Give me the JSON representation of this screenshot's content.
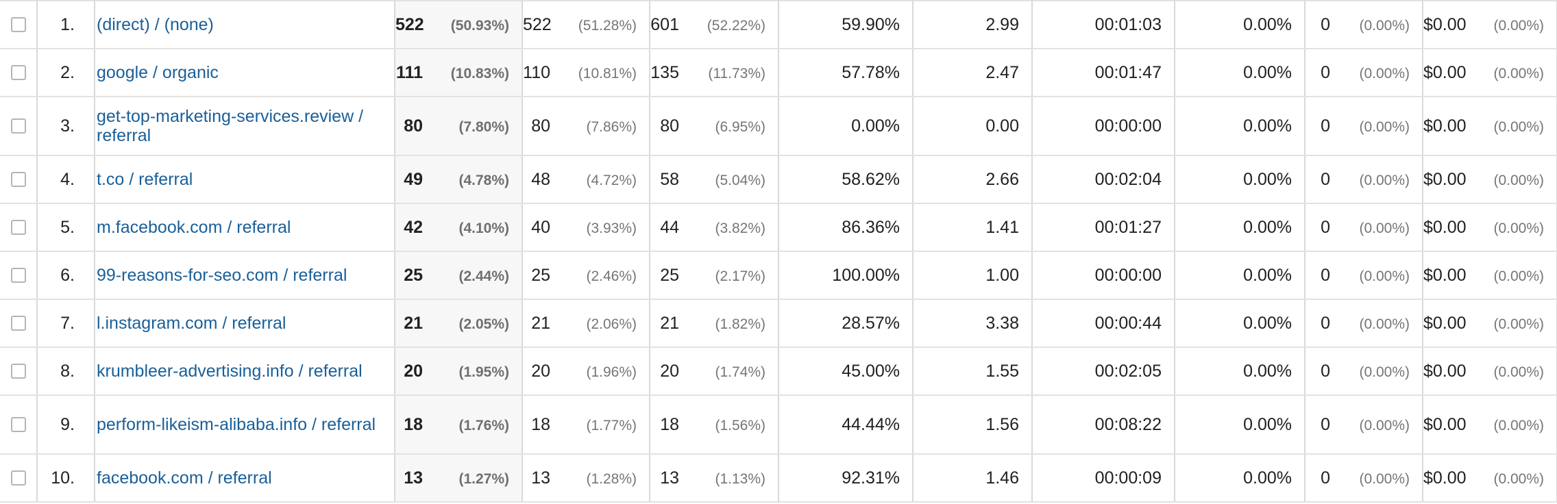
{
  "rows": [
    {
      "index": "1.",
      "source": "(direct) / (none)",
      "sessions": "522",
      "sessions_pct": "(50.93%)",
      "users": "522",
      "users_pct": "(51.28%)",
      "new_users": "601",
      "new_users_pct": "(52.22%)",
      "bounce_rate": "59.90%",
      "pages_per_session": "2.99",
      "avg_duration": "00:01:03",
      "conv_rate": "0.00%",
      "goal_completions": "0",
      "goal_completions_pct": "(0.00%)",
      "goal_value": "$0.00",
      "goal_value_pct": "(0.00%)"
    },
    {
      "index": "2.",
      "source": "google / organic",
      "sessions": "111",
      "sessions_pct": "(10.83%)",
      "users": "110",
      "users_pct": "(10.81%)",
      "new_users": "135",
      "new_users_pct": "(11.73%)",
      "bounce_rate": "57.78%",
      "pages_per_session": "2.47",
      "avg_duration": "00:01:47",
      "conv_rate": "0.00%",
      "goal_completions": "0",
      "goal_completions_pct": "(0.00%)",
      "goal_value": "$0.00",
      "goal_value_pct": "(0.00%)"
    },
    {
      "index": "3.",
      "source": "get-top-marketing-services.review / referral",
      "sessions": "80",
      "sessions_pct": "(7.80%)",
      "users": "80",
      "users_pct": "(7.86%)",
      "new_users": "80",
      "new_users_pct": "(6.95%)",
      "bounce_rate": "0.00%",
      "pages_per_session": "0.00",
      "avg_duration": "00:00:00",
      "conv_rate": "0.00%",
      "goal_completions": "0",
      "goal_completions_pct": "(0.00%)",
      "goal_value": "$0.00",
      "goal_value_pct": "(0.00%)"
    },
    {
      "index": "4.",
      "source": "t.co / referral",
      "sessions": "49",
      "sessions_pct": "(4.78%)",
      "users": "48",
      "users_pct": "(4.72%)",
      "new_users": "58",
      "new_users_pct": "(5.04%)",
      "bounce_rate": "58.62%",
      "pages_per_session": "2.66",
      "avg_duration": "00:02:04",
      "conv_rate": "0.00%",
      "goal_completions": "0",
      "goal_completions_pct": "(0.00%)",
      "goal_value": "$0.00",
      "goal_value_pct": "(0.00%)"
    },
    {
      "index": "5.",
      "source": "m.facebook.com / referral",
      "sessions": "42",
      "sessions_pct": "(4.10%)",
      "users": "40",
      "users_pct": "(3.93%)",
      "new_users": "44",
      "new_users_pct": "(3.82%)",
      "bounce_rate": "86.36%",
      "pages_per_session": "1.41",
      "avg_duration": "00:01:27",
      "conv_rate": "0.00%",
      "goal_completions": "0",
      "goal_completions_pct": "(0.00%)",
      "goal_value": "$0.00",
      "goal_value_pct": "(0.00%)"
    },
    {
      "index": "6.",
      "source": "99-reasons-for-seo.com / referral",
      "sessions": "25",
      "sessions_pct": "(2.44%)",
      "users": "25",
      "users_pct": "(2.46%)",
      "new_users": "25",
      "new_users_pct": "(2.17%)",
      "bounce_rate": "100.00%",
      "pages_per_session": "1.00",
      "avg_duration": "00:00:00",
      "conv_rate": "0.00%",
      "goal_completions": "0",
      "goal_completions_pct": "(0.00%)",
      "goal_value": "$0.00",
      "goal_value_pct": "(0.00%)"
    },
    {
      "index": "7.",
      "source": "l.instagram.com / referral",
      "sessions": "21",
      "sessions_pct": "(2.05%)",
      "users": "21",
      "users_pct": "(2.06%)",
      "new_users": "21",
      "new_users_pct": "(1.82%)",
      "bounce_rate": "28.57%",
      "pages_per_session": "3.38",
      "avg_duration": "00:00:44",
      "conv_rate": "0.00%",
      "goal_completions": "0",
      "goal_completions_pct": "(0.00%)",
      "goal_value": "$0.00",
      "goal_value_pct": "(0.00%)"
    },
    {
      "index": "8.",
      "source": "krumbleer-advertising.info / referral",
      "sessions": "20",
      "sessions_pct": "(1.95%)",
      "users": "20",
      "users_pct": "(1.96%)",
      "new_users": "20",
      "new_users_pct": "(1.74%)",
      "bounce_rate": "45.00%",
      "pages_per_session": "1.55",
      "avg_duration": "00:02:05",
      "conv_rate": "0.00%",
      "goal_completions": "0",
      "goal_completions_pct": "(0.00%)",
      "goal_value": "$0.00",
      "goal_value_pct": "(0.00%)"
    },
    {
      "index": "9.",
      "source": "perform-likeism-alibaba.info / referral",
      "sessions": "18",
      "sessions_pct": "(1.76%)",
      "users": "18",
      "users_pct": "(1.77%)",
      "new_users": "18",
      "new_users_pct": "(1.56%)",
      "bounce_rate": "44.44%",
      "pages_per_session": "1.56",
      "avg_duration": "00:08:22",
      "conv_rate": "0.00%",
      "goal_completions": "0",
      "goal_completions_pct": "(0.00%)",
      "goal_value": "$0.00",
      "goal_value_pct": "(0.00%)"
    },
    {
      "index": "10.",
      "source": "facebook.com / referral",
      "sessions": "13",
      "sessions_pct": "(1.27%)",
      "users": "13",
      "users_pct": "(1.28%)",
      "new_users": "13",
      "new_users_pct": "(1.13%)",
      "bounce_rate": "92.31%",
      "pages_per_session": "1.46",
      "avg_duration": "00:00:09",
      "conv_rate": "0.00%",
      "goal_completions": "0",
      "goal_completions_pct": "(0.00%)",
      "goal_value": "$0.00",
      "goal_value_pct": "(0.00%)"
    }
  ]
}
